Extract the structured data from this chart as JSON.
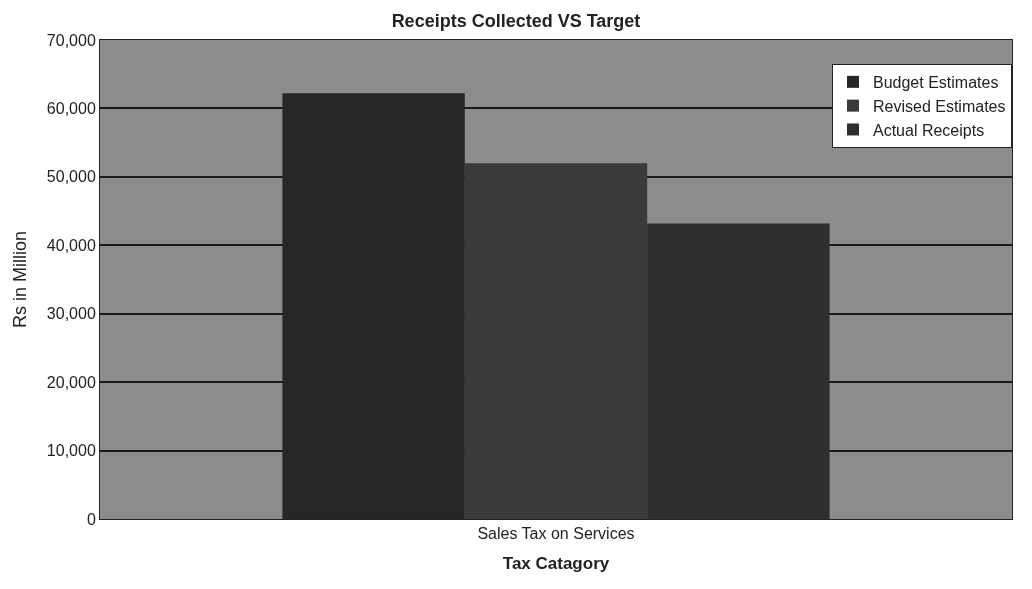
{
  "chart_data": {
    "type": "bar",
    "title": "Receipts Collected VS Target",
    "xlabel": "Tax Catagory",
    "ylabel": "Rs in Million",
    "categories": [
      "Sales Tax on Services"
    ],
    "series": [
      {
        "name": "Budget Estimates",
        "color": "#262626",
        "values": [
          62200
        ]
      },
      {
        "name": "Revised Estimates",
        "color": "#3a3a3a",
        "values": [
          52000
        ]
      },
      {
        "name": "Actual Receipts",
        "color": "#2e2e2e",
        "values": [
          43200
        ]
      }
    ],
    "ylim": [
      0,
      70000
    ],
    "yticks": [
      {
        "value": 0,
        "label": "0"
      },
      {
        "value": 10000,
        "label": "10,000"
      },
      {
        "value": 20000,
        "label": "20,000"
      },
      {
        "value": 30000,
        "label": "30,000"
      },
      {
        "value": 40000,
        "label": "40,000"
      },
      {
        "value": 50000,
        "label": "50,000"
      },
      {
        "value": 60000,
        "label": "60,000"
      },
      {
        "value": 70000,
        "label": "70,000"
      }
    ],
    "grid": "y",
    "legend": "top right"
  }
}
